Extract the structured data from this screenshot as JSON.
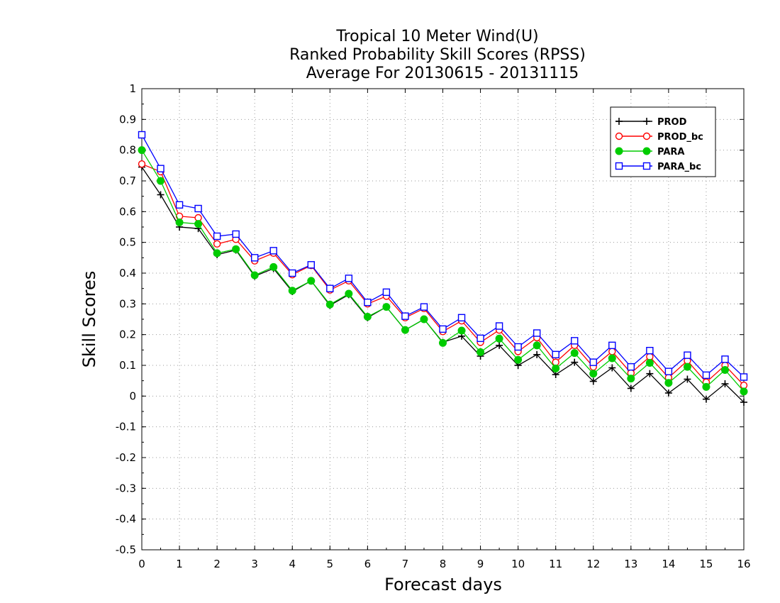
{
  "chart_data": {
    "type": "line",
    "title": [
      "Tropical 10 Meter Wind(U)",
      "Ranked Probability Skill Scores (RPSS)",
      "Average For 20130615 - 20131115"
    ],
    "xlabel": "Forecast days",
    "ylabel": "Skill Scores",
    "xlim": [
      0,
      16
    ],
    "ylim": [
      -0.5,
      1
    ],
    "xticks": [
      "0",
      "1",
      "2",
      "3",
      "4",
      "5",
      "6",
      "7",
      "8",
      "9",
      "10",
      "11",
      "12",
      "13",
      "14",
      "15",
      "16"
    ],
    "yticks": [
      "-0.5",
      "-0.4",
      "-0.3",
      "-0.2",
      "-0.1",
      "0",
      "0.1",
      "0.2",
      "0.3",
      "0.4",
      "0.5",
      "0.6",
      "0.7",
      "0.8",
      "0.9",
      "1"
    ],
    "grid": true,
    "legend_position": "top-right",
    "x": [
      0,
      0.5,
      1,
      1.5,
      2,
      2.5,
      3,
      3.5,
      4,
      4.5,
      5,
      5.5,
      6,
      6.5,
      7,
      7.5,
      8,
      8.5,
      9,
      9.5,
      10,
      10.5,
      11,
      11.5,
      12,
      12.5,
      13,
      13.5,
      14,
      14.5,
      15,
      15.5,
      16
    ],
    "series": [
      {
        "name": "PROD",
        "color": "#000000",
        "marker": "plus",
        "values": [
          0.745,
          0.655,
          0.55,
          0.545,
          0.46,
          0.475,
          0.39,
          0.415,
          0.34,
          0.375,
          0.295,
          0.33,
          0.255,
          0.29,
          0.215,
          0.25,
          0.175,
          0.195,
          0.13,
          0.165,
          0.1,
          0.135,
          0.07,
          0.11,
          0.048,
          0.092,
          0.025,
          0.073,
          0.01,
          0.055,
          -0.01,
          0.04,
          -0.02
        ]
      },
      {
        "name": "PROD_bc",
        "color": "#ff0000",
        "marker": "open-circle",
        "values": [
          0.755,
          0.73,
          0.585,
          0.58,
          0.495,
          0.51,
          0.44,
          0.465,
          0.395,
          0.425,
          0.345,
          0.375,
          0.3,
          0.325,
          0.255,
          0.285,
          0.21,
          0.245,
          0.175,
          0.215,
          0.145,
          0.19,
          0.11,
          0.165,
          0.095,
          0.145,
          0.075,
          0.128,
          0.06,
          0.115,
          0.045,
          0.1,
          0.035
        ]
      },
      {
        "name": "PARA",
        "color": "#00cc00",
        "marker": "filled-circle",
        "values": [
          0.8,
          0.7,
          0.565,
          0.56,
          0.465,
          0.478,
          0.393,
          0.42,
          0.343,
          0.375,
          0.298,
          0.333,
          0.258,
          0.29,
          0.215,
          0.25,
          0.173,
          0.213,
          0.143,
          0.187,
          0.118,
          0.165,
          0.09,
          0.14,
          0.073,
          0.123,
          0.057,
          0.108,
          0.043,
          0.095,
          0.03,
          0.085,
          0.015
        ]
      },
      {
        "name": "PARA_bc",
        "color": "#0000ff",
        "marker": "open-square",
        "values": [
          0.85,
          0.74,
          0.622,
          0.61,
          0.52,
          0.527,
          0.45,
          0.473,
          0.4,
          0.427,
          0.35,
          0.383,
          0.305,
          0.338,
          0.26,
          0.29,
          0.218,
          0.255,
          0.188,
          0.228,
          0.16,
          0.205,
          0.135,
          0.18,
          0.11,
          0.165,
          0.095,
          0.148,
          0.08,
          0.133,
          0.068,
          0.12,
          0.062
        ]
      }
    ]
  }
}
